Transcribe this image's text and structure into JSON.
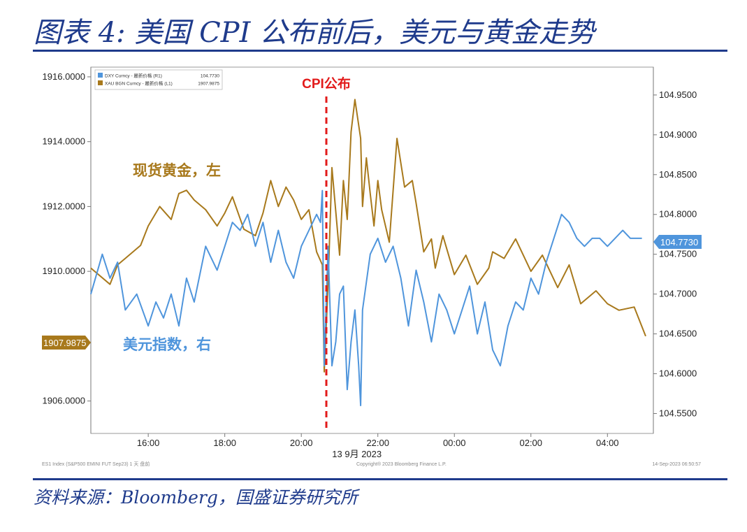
{
  "header": {
    "title": "图表 4: 美国 CPI 公布前后，美元与黄金走势"
  },
  "source": {
    "text": "资料来源：Bloomberg，国盛证券研究所"
  },
  "chart_data": {
    "type": "line",
    "event_label": "CPI公布",
    "x_ticks": [
      "16:00",
      "18:00",
      "20:00",
      "22:00",
      "00:00",
      "02:00",
      "04:00"
    ],
    "x_date_label": "13 9月 2023",
    "left_axis": {
      "ticks": [
        "1906.0000",
        "1910.0000",
        "1912.0000",
        "1914.0000",
        "1916.0000"
      ],
      "ylim": [
        1905.0,
        1916.3
      ]
    },
    "right_axis": {
      "ticks": [
        "104.5500",
        "104.6000",
        "104.6500",
        "104.7000",
        "104.7500",
        "104.8000",
        "104.8500",
        "104.9000",
        "104.9500"
      ],
      "ylim": [
        104.525,
        104.985
      ]
    },
    "legend": {
      "placement": "top-left",
      "entries": [
        {
          "label": "DXY Curncy - 最新价格 (R1)",
          "value": "104.7730",
          "color": "#4f95dc"
        },
        {
          "label": "XAU BGN Curncy - 最新价格 (L1)",
          "value": "1907.9875",
          "color": "#a8791c"
        }
      ]
    },
    "annotations": {
      "gold": "现货黄金，左",
      "dxy": "美元指数，右"
    },
    "last_value_tags": {
      "gold": "1907.9875",
      "dxy": "104.7730"
    },
    "series": [
      {
        "name": "XAU BGN Curncy - 最新价格 (L1)",
        "axis": "left",
        "color": "#a8791c",
        "x": [
          14.5,
          15.0,
          15.2,
          15.4,
          15.8,
          16.0,
          16.3,
          16.6,
          16.8,
          17.0,
          17.2,
          17.5,
          17.8,
          18.0,
          18.2,
          18.5,
          18.8,
          19.0,
          19.2,
          19.4,
          19.6,
          19.8,
          20.0,
          20.2,
          20.4,
          20.55,
          20.6,
          20.7,
          20.8,
          21.0,
          21.1,
          21.2,
          21.3,
          21.4,
          21.55,
          21.6,
          21.7,
          21.8,
          21.9,
          22.0,
          22.1,
          22.3,
          22.5,
          22.7,
          22.9,
          23.0,
          23.2,
          23.4,
          23.5,
          23.7,
          24.0,
          24.3,
          24.6,
          24.9,
          25.0,
          25.3,
          25.6,
          26.0,
          26.3,
          26.7,
          27.0,
          27.3,
          27.7,
          28.0,
          28.3,
          28.7,
          29.0
        ],
        "values": [
          1910.1,
          1909.6,
          1910.2,
          1910.4,
          1910.8,
          1911.4,
          1912.0,
          1911.6,
          1912.4,
          1912.5,
          1912.2,
          1911.9,
          1911.4,
          1911.8,
          1912.3,
          1911.3,
          1911.1,
          1911.8,
          1912.8,
          1912.0,
          1912.6,
          1912.2,
          1911.6,
          1911.9,
          1910.6,
          1910.2,
          1906.9,
          1909.6,
          1913.2,
          1910.5,
          1912.8,
          1911.6,
          1914.3,
          1915.3,
          1914.1,
          1912.0,
          1913.5,
          1912.4,
          1911.4,
          1912.8,
          1911.9,
          1910.9,
          1914.1,
          1912.6,
          1912.8,
          1912.1,
          1910.6,
          1911.0,
          1910.1,
          1911.1,
          1909.9,
          1910.5,
          1909.6,
          1910.1,
          1910.6,
          1910.4,
          1911.0,
          1910.0,
          1910.5,
          1909.5,
          1910.2,
          1909.0,
          1909.4,
          1909.0,
          1908.8,
          1908.9,
          1908.0
        ]
      },
      {
        "name": "DXY Curncy - 最新价格 (R1)",
        "axis": "right",
        "color": "#4f95dc",
        "x": [
          14.5,
          14.8,
          15.0,
          15.2,
          15.4,
          15.7,
          16.0,
          16.2,
          16.4,
          16.6,
          16.8,
          17.0,
          17.2,
          17.5,
          17.8,
          18.0,
          18.2,
          18.4,
          18.6,
          18.8,
          19.0,
          19.2,
          19.4,
          19.6,
          19.8,
          20.0,
          20.2,
          20.4,
          20.5,
          20.55,
          20.6,
          20.7,
          20.8,
          20.9,
          21.0,
          21.1,
          21.2,
          21.3,
          21.4,
          21.5,
          21.55,
          21.6,
          21.8,
          22.0,
          22.2,
          22.4,
          22.6,
          22.8,
          23.0,
          23.2,
          23.4,
          23.6,
          23.8,
          24.0,
          24.2,
          24.4,
          24.6,
          24.8,
          25.0,
          25.2,
          25.4,
          25.6,
          25.8,
          26.0,
          26.2,
          26.4,
          26.6,
          26.8,
          27.0,
          27.2,
          27.4,
          27.6,
          27.8,
          28.0,
          28.2,
          28.4,
          28.6,
          28.9
        ],
        "values": [
          104.7,
          104.75,
          104.72,
          104.74,
          104.68,
          104.7,
          104.66,
          104.69,
          104.67,
          104.7,
          104.66,
          104.72,
          104.69,
          104.76,
          104.73,
          104.76,
          104.79,
          104.78,
          104.8,
          104.76,
          104.79,
          104.74,
          104.78,
          104.74,
          104.72,
          104.76,
          104.78,
          104.8,
          104.79,
          104.83,
          104.61,
          104.76,
          104.61,
          104.64,
          104.7,
          104.71,
          104.58,
          104.64,
          104.68,
          104.61,
          104.56,
          104.68,
          104.75,
          104.77,
          104.74,
          104.76,
          104.72,
          104.66,
          104.73,
          104.69,
          104.64,
          104.7,
          104.68,
          104.65,
          104.68,
          104.71,
          104.65,
          104.69,
          104.63,
          104.61,
          104.66,
          104.69,
          104.68,
          104.72,
          104.7,
          104.74,
          104.77,
          104.8,
          104.79,
          104.77,
          104.76,
          104.77,
          104.77,
          104.76,
          104.77,
          104.78,
          104.77,
          104.77
        ]
      }
    ]
  },
  "footer": {
    "left": "ES1 Index (S&P500 EMINI FUT Sep23) 1 天 盘前",
    "center": "Copyright® 2023 Bloomberg Finance L.P.",
    "right": "14-Sep-2023 06:50:57"
  }
}
